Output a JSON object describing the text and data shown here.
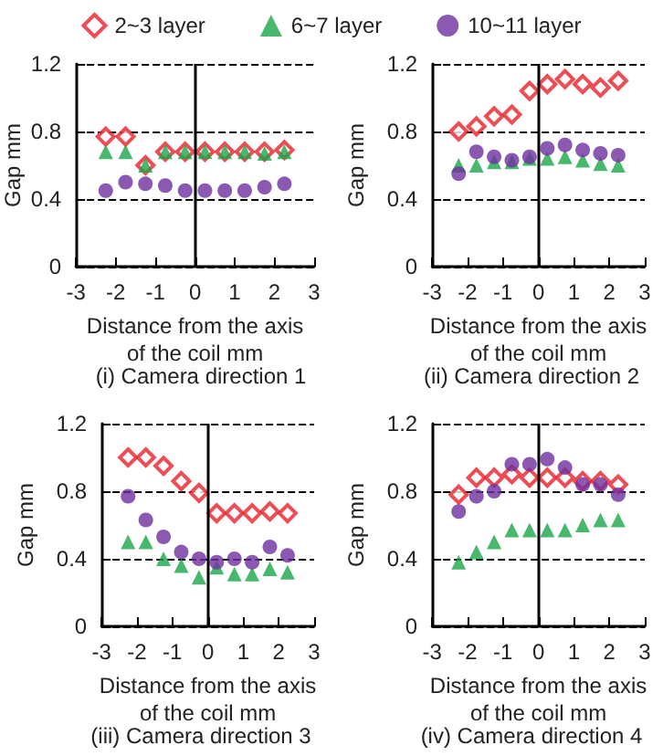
{
  "chart_data": [
    {
      "type": "scatter",
      "title": "(i) Camera direction 1",
      "xlabel": "Distance from the axis\nof the coil mm",
      "ylabel": "Gap mm",
      "x": [
        -2.25,
        -1.75,
        -1.25,
        -0.75,
        -0.25,
        0.25,
        0.75,
        1.25,
        1.75,
        2.25
      ],
      "xlim": [
        -3,
        3
      ],
      "xticks": [
        -3,
        -2,
        -1,
        0,
        1,
        2,
        3
      ],
      "ylim": [
        0,
        1.2
      ],
      "yticks": [
        0,
        0.4,
        0.8,
        1.2
      ],
      "grid": "y",
      "legend": "top",
      "ref_lines": [
        {
          "axis": "x",
          "value": 0,
          "color": "#000000"
        }
      ],
      "series": [
        {
          "name": "2~3 layer",
          "color": "#e8202a",
          "marker": "diamond",
          "values": [
            0.77,
            0.77,
            0.6,
            0.68,
            0.68,
            0.68,
            0.68,
            0.68,
            0.68,
            0.69
          ]
        },
        {
          "name": "6~7 layer",
          "color": "#1aa64a",
          "marker": "triangle",
          "values": [
            0.68,
            0.68,
            0.6,
            0.68,
            0.68,
            0.68,
            0.68,
            0.68,
            0.67,
            0.68
          ]
        },
        {
          "name": "10~11 layer",
          "color": "#6f2f9f",
          "marker": "circle",
          "values": [
            0.45,
            0.5,
            0.49,
            0.48,
            0.45,
            0.45,
            0.45,
            0.45,
            0.47,
            0.49
          ]
        }
      ]
    },
    {
      "type": "scatter",
      "title": "(ii) Camera direction 2",
      "xlabel": "Distance from the axis\nof the coil mm",
      "ylabel": "Gap mm",
      "x": [
        -2.25,
        -1.75,
        -1.25,
        -0.75,
        -0.25,
        0.25,
        0.75,
        1.25,
        1.75,
        2.25
      ],
      "xlim": [
        -3,
        3
      ],
      "xticks": [
        -3,
        -2,
        -1,
        0,
        1,
        2,
        3
      ],
      "ylim": [
        0,
        1.2
      ],
      "yticks": [
        0,
        0.4,
        0.8,
        1.2
      ],
      "grid": "y",
      "ref_lines": [
        {
          "axis": "x",
          "value": 0,
          "color": "#000000"
        }
      ],
      "series": [
        {
          "color": "#e8202a",
          "marker": "diamond",
          "values": [
            0.8,
            0.83,
            0.89,
            0.9,
            1.04,
            1.08,
            1.11,
            1.08,
            1.06,
            1.1
          ]
        },
        {
          "color": "#1aa64a",
          "marker": "triangle",
          "values": [
            0.6,
            0.6,
            0.62,
            0.62,
            0.64,
            0.64,
            0.65,
            0.63,
            0.61,
            0.6
          ]
        },
        {
          "color": "#6f2f9f",
          "marker": "circle",
          "values": [
            0.55,
            0.68,
            0.65,
            0.63,
            0.65,
            0.7,
            0.72,
            0.69,
            0.67,
            0.66
          ]
        }
      ]
    },
    {
      "type": "scatter",
      "title": "(iii) Camera direction 3",
      "xlabel": "Distance from the axis\nof the coil mm",
      "ylabel": "Gap mm",
      "x": [
        -2.25,
        -1.75,
        -1.25,
        -0.75,
        -0.25,
        0.25,
        0.75,
        1.25,
        1.75,
        2.25
      ],
      "xlim": [
        -3,
        3
      ],
      "xticks": [
        -3,
        -2,
        -1,
        0,
        1,
        2,
        3
      ],
      "ylim": [
        0,
        1.2
      ],
      "yticks": [
        0,
        0.4,
        0.8,
        1.2
      ],
      "grid": "y",
      "ref_lines": [
        {
          "axis": "x",
          "value": 0,
          "color": "#000000"
        }
      ],
      "series": [
        {
          "color": "#e8202a",
          "marker": "diamond",
          "values": [
            1.0,
            1.0,
            0.95,
            0.86,
            0.79,
            0.67,
            0.67,
            0.67,
            0.68,
            0.67
          ]
        },
        {
          "color": "#1aa64a",
          "marker": "triangle",
          "values": [
            0.5,
            0.5,
            0.4,
            0.36,
            0.29,
            0.35,
            0.31,
            0.31,
            0.34,
            0.32
          ]
        },
        {
          "color": "#6f2f9f",
          "marker": "circle",
          "values": [
            0.77,
            0.63,
            0.53,
            0.44,
            0.4,
            0.38,
            0.4,
            0.38,
            0.47,
            0.42
          ]
        }
      ]
    },
    {
      "type": "scatter",
      "title": "(iv) Camera direction 4",
      "xlabel": "Distance from the axis\nof the coil mm",
      "ylabel": "Gap mm",
      "x": [
        -2.25,
        -1.75,
        -1.25,
        -0.75,
        -0.25,
        0.25,
        0.75,
        1.25,
        1.75,
        2.25
      ],
      "xlim": [
        -3,
        3
      ],
      "xticks": [
        -3,
        -2,
        -1,
        0,
        1,
        2,
        3
      ],
      "ylim": [
        0,
        1.2
      ],
      "yticks": [
        0,
        0.4,
        0.8,
        1.2
      ],
      "grid": "y",
      "ref_lines": [
        {
          "axis": "x",
          "value": 0,
          "color": "#000000"
        }
      ],
      "series": [
        {
          "color": "#e8202a",
          "marker": "diamond",
          "values": [
            0.78,
            0.88,
            0.88,
            0.9,
            0.88,
            0.88,
            0.88,
            0.86,
            0.86,
            0.84
          ]
        },
        {
          "color": "#1aa64a",
          "marker": "triangle",
          "values": [
            0.38,
            0.44,
            0.5,
            0.57,
            0.57,
            0.57,
            0.57,
            0.6,
            0.63,
            0.63
          ]
        },
        {
          "color": "#6f2f9f",
          "marker": "circle",
          "values": [
            0.68,
            0.77,
            0.8,
            0.96,
            0.96,
            0.99,
            0.94,
            0.84,
            0.84,
            0.78
          ]
        }
      ]
    }
  ]
}
